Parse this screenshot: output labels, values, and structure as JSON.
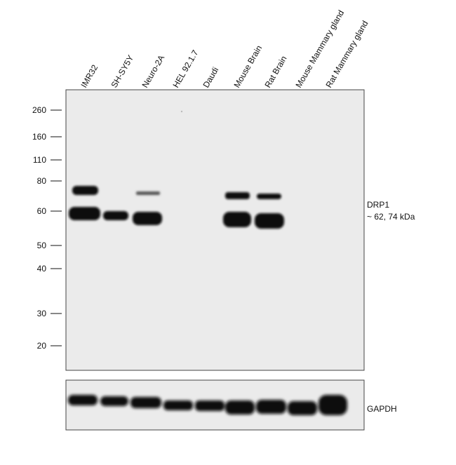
{
  "lanes": [
    "IMR32",
    "SH-SY5Y",
    "Neuro-2A",
    "HEL 92.1.7",
    "Daudi",
    "Mouse Brain",
    "Rat Brain",
    "Mouse Mammary gland",
    "Rat Mammary gland"
  ],
  "markers": [
    "260",
    "160",
    "110",
    "80",
    "60",
    "50",
    "40",
    "30",
    "20"
  ],
  "targets": [
    {
      "label": "DRP1",
      "size": "~ 62, 74 kDa"
    },
    {
      "label": "GAPDH"
    }
  ]
}
